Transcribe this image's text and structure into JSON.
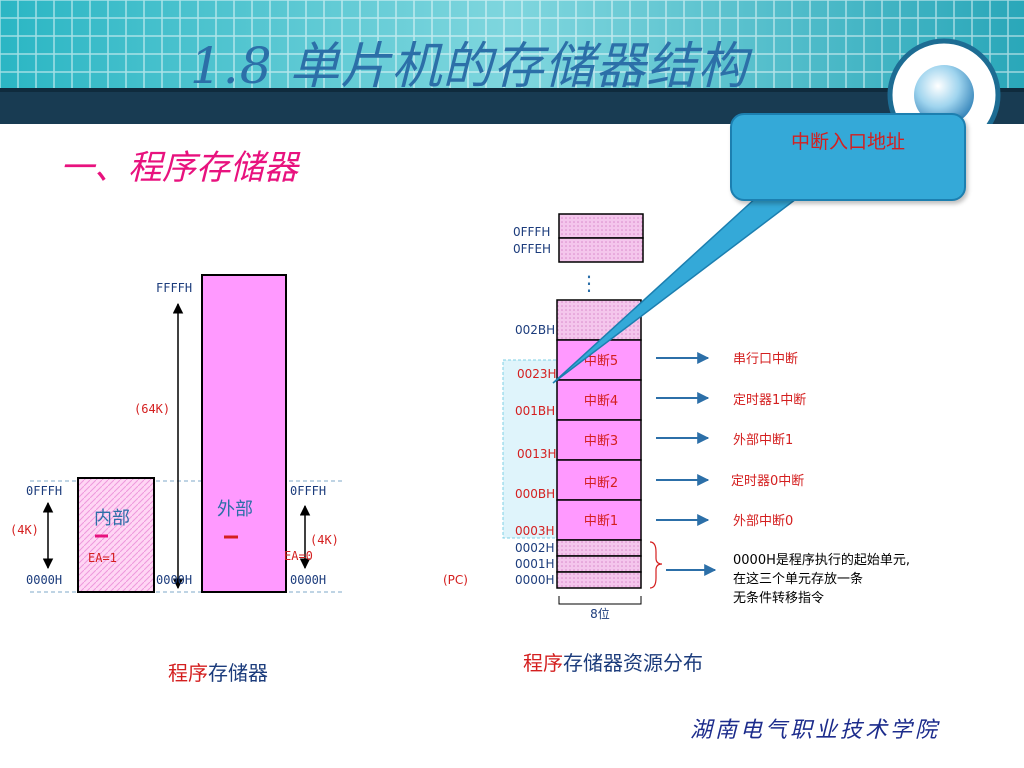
{
  "title": "1.8   单片机的存储器结构",
  "section": "一、程序存储器",
  "callout": "中断入口地址",
  "footer": "湖南电气职业技术学院",
  "colors": {
    "accent": "#e8127e",
    "header_blue": "#2c6fa8",
    "callout": "#34a9d8",
    "pink_block": "#ff99ff",
    "red_text": "#d41f1f"
  },
  "left_diagram": {
    "ffff_label": "FFFFH",
    "range_64k": "(64K)",
    "left_0fff": "0FFFH",
    "left_4k": "(4K)",
    "left_0000": "0000H",
    "internal_label": "内部",
    "ea1": "EA=1",
    "mid_0000": "0000H",
    "external_label": "外部",
    "right_0fff": "0FFFH",
    "right_4k": "(4K)",
    "ea0": "EA=0",
    "right_0000": "0000H",
    "caption_pre": "程序",
    "caption_post": "存储器"
  },
  "right_diagram": {
    "addr_top1": "0FFFH",
    "addr_top2": "0FFEH",
    "ellipsis": "⋮",
    "addr_002b": "002BH",
    "addr_0023": "0023H",
    "addr_001b": "001BH",
    "addr_0013": "0013H",
    "addr_000b": "000BH",
    "addr_0003": "0003H",
    "addr_0002": "0002H",
    "addr_0001": "0001H",
    "addr_0000": "0000H",
    "pc_label": "(PC)",
    "width_label": "8位",
    "interrupts": [
      {
        "slot": "中断5",
        "desc": "串行口中断"
      },
      {
        "slot": "中断4",
        "desc": "定时器1中断"
      },
      {
        "slot": "中断3",
        "desc": "外部中断1"
      },
      {
        "slot": "中断2",
        "desc": "定时器0中断"
      },
      {
        "slot": "中断1",
        "desc": "外部中断0"
      }
    ],
    "note_line1": "0000H是程序执行的起始单元,",
    "note_line2": "在这三个单元存放一条",
    "note_line3": "无条件转移指令",
    "caption_pre": "程序",
    "caption_post": "存储器资源分布"
  }
}
